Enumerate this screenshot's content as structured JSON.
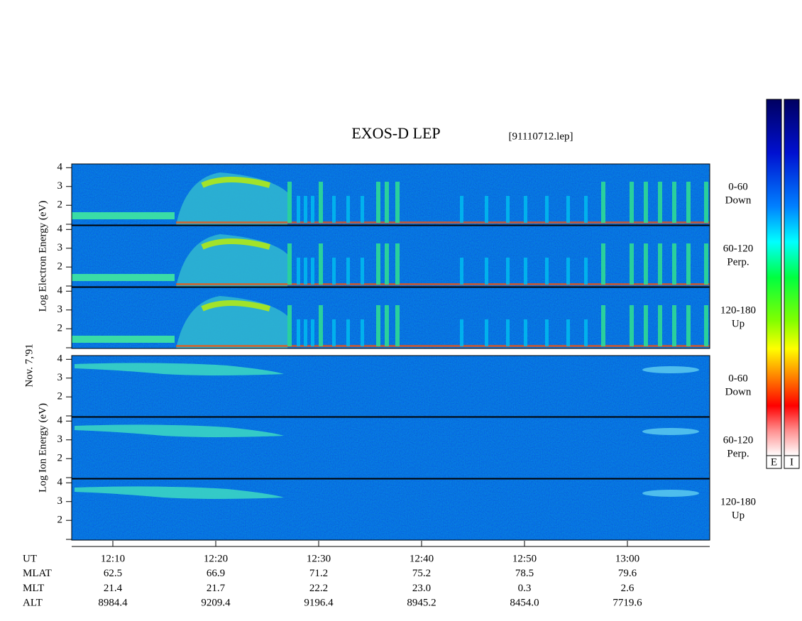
{
  "chart_data": {
    "type": "spectrogram",
    "title": "EXOS-D LEP",
    "subtitle": "[91110712.lep]",
    "date": "Nov. 7,'91",
    "groups": [
      {
        "name": "electron",
        "ylabel": "Log Electron Energy (eV)",
        "panels": [
          {
            "label": [
              "0-60",
              "Down"
            ]
          },
          {
            "label": [
              "60-120",
              "Perp."
            ]
          },
          {
            "label": [
              "120-180",
              "Up"
            ]
          }
        ]
      },
      {
        "name": "ion",
        "ylabel": "Log Ion Energy (eV)",
        "panels": [
          {
            "label": [
              "0-60",
              "Down"
            ]
          },
          {
            "label": [
              "60-120",
              "Perp."
            ]
          },
          {
            "label": [
              "120-180",
              "Up"
            ]
          }
        ]
      }
    ],
    "ylim": [
      0.95,
      4.2
    ],
    "yticks": [
      2,
      3,
      4
    ],
    "xlim": [
      "12:06",
      "13:08"
    ],
    "xticks": [
      "12:10",
      "12:20",
      "12:30",
      "12:40",
      "12:50",
      "13:00"
    ],
    "ephemeris": [
      {
        "label": "UT"
      },
      {
        "label": "MLAT",
        "values": [
          "62.5",
          "66.9",
          "71.2",
          "75.2",
          "78.5",
          "79.6"
        ]
      },
      {
        "label": "MLT",
        "values": [
          "21.4",
          "21.7",
          "22.2",
          "23.0",
          "0.3",
          "2.6"
        ]
      },
      {
        "label": "ALT",
        "values": [
          "8984.4",
          "9209.4",
          "9196.4",
          "8945.2",
          "8454.0",
          "7719.6"
        ]
      }
    ],
    "colorbars": [
      "E",
      "I"
    ]
  }
}
